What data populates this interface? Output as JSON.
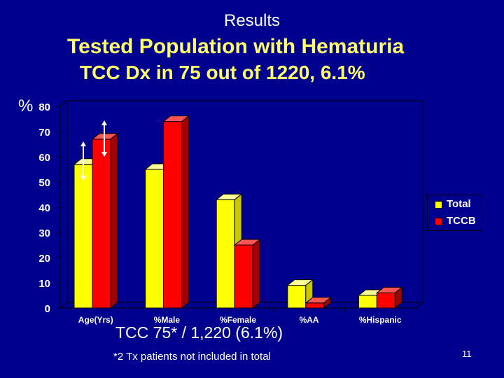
{
  "slide": {
    "heading": "Results",
    "title_line1": "Tested Population with Hematuria",
    "title_line2": "TCC Dx in  75 out of 1220, 6.1%",
    "summary": "TCC 75* / 1,220 (6.1%)",
    "footnote": "*2 Tx patients not included in total",
    "page_number": "11"
  },
  "chart_data": {
    "type": "bar",
    "title": "",
    "xlabel": "",
    "ylabel": "%",
    "ylim": [
      0,
      80
    ],
    "yticks": [
      0,
      10,
      20,
      30,
      40,
      50,
      60,
      70,
      80
    ],
    "grid": false,
    "legend_position": "right",
    "categories": [
      "Age(Yrs)",
      "%Male",
      "%Female",
      "%AA",
      "%Hispanic"
    ],
    "series": [
      {
        "name": "Total",
        "color": "#ffff00",
        "values": [
          57,
          55,
          43,
          9,
          5
        ]
      },
      {
        "name": "TCCB",
        "color": "#ff0000",
        "values": [
          67,
          74,
          25,
          2,
          6
        ]
      }
    ],
    "annotations": [
      "double-arrow-on-total-age",
      "double-arrow-on-tccb-age"
    ]
  }
}
